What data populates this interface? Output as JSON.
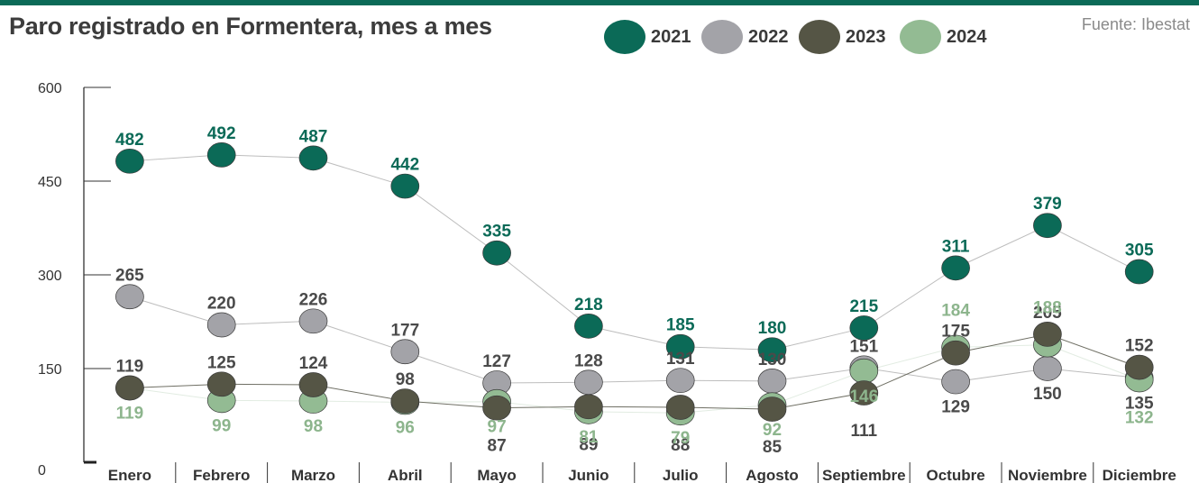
{
  "title": "Paro registrado en Formentera, mes a mes",
  "source": "Fuente: Ibestat",
  "legend": [
    {
      "name": "2021",
      "color": "#0b6a57"
    },
    {
      "name": "2022",
      "color": "#a3a3a8"
    },
    {
      "name": "2023",
      "color": "#555545"
    },
    {
      "name": "2024",
      "color": "#93bb93"
    }
  ],
  "chart_data": {
    "type": "line",
    "title": "Paro registrado en Formentera, mes a mes",
    "xlabel": "",
    "ylabel": "",
    "ylim": [
      0,
      600
    ],
    "yticks": [
      0,
      150,
      300,
      450,
      600
    ],
    "grid": false,
    "legend_position": "top",
    "categories": [
      "Enero",
      "Febrero",
      "Marzo",
      "Abril",
      "Mayo",
      "Junio",
      "Julio",
      "Agosto",
      "Septiembre",
      "Octubre",
      "Noviembre",
      "Diciembre"
    ],
    "series": [
      {
        "name": "2021",
        "color": "#0b6a57",
        "label_color": "#0b6a57",
        "values": [
          482,
          492,
          487,
          442,
          335,
          218,
          185,
          180,
          215,
          311,
          379,
          305
        ]
      },
      {
        "name": "2022",
        "color": "#a3a3a8",
        "label_color": "#4a4a4a",
        "values": [
          265,
          220,
          226,
          177,
          127,
          128,
          131,
          130,
          151,
          129,
          150,
          135
        ]
      },
      {
        "name": "2023",
        "color": "#555545",
        "label_color": "#4a4a4a",
        "values": [
          119,
          125,
          124,
          98,
          87,
          89,
          88,
          85,
          111,
          175,
          205,
          152
        ]
      },
      {
        "name": "2024",
        "color": "#93bb93",
        "label_color": "#8db58d",
        "values": [
          119,
          99,
          98,
          96,
          97,
          81,
          79,
          92,
          146,
          184,
          188,
          132
        ]
      }
    ]
  }
}
